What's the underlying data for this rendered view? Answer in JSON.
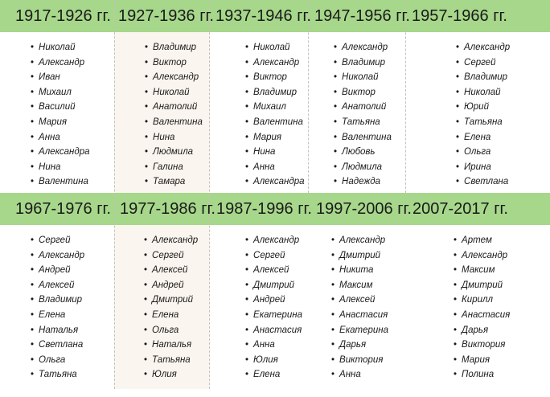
{
  "rows": [
    {
      "periods": [
        {
          "label": "1917-1926 гг.",
          "names": [
            "Николай",
            "Александр",
            "Иван",
            "Михаил",
            "Василий",
            "Мария",
            "Анна",
            "Александра",
            "Нина",
            "Валентина"
          ]
        },
        {
          "label": "1927-1936 гг.",
          "names": [
            "Владимир",
            "Виктор",
            "Александр",
            "Николай",
            "Анатолий",
            "Валентина",
            "Нина",
            "Людмила",
            "Галина",
            "Тамара"
          ]
        },
        {
          "label": "1937-1946 гг.",
          "names": [
            "Николай",
            "Александр",
            "Виктор",
            "Владимир",
            "Михаил",
            "Валентина",
            "Мария",
            "Нина",
            "Анна",
            "Александра"
          ]
        },
        {
          "label": "1947-1956 гг.",
          "names": [
            "Александр",
            "Владимир",
            "Николай",
            "Виктор",
            "Анатолий",
            "Татьяна",
            "Валентина",
            "Любовь",
            "Людмила",
            "Надежда"
          ]
        },
        {
          "label": "1957-1966 гг.",
          "names": [
            "Александр",
            "Сергей",
            "Владимир",
            "Николай",
            "Юрий",
            "Татьяна",
            "Елена",
            "Ольга",
            "Ирина",
            "Светлана"
          ]
        }
      ]
    },
    {
      "periods": [
        {
          "label": "1967-1976 гг.",
          "names": [
            "Сергей",
            "Александр",
            "Андрей",
            "Алексей",
            "Владимир",
            "Елена",
            "Наталья",
            "Светлана",
            "Ольга",
            "Татьяна"
          ]
        },
        {
          "label": "1977-1986 гг.",
          "names": [
            "Александр",
            "Сергей",
            "Алексей",
            "Андрей",
            "Дмитрий",
            "Елена",
            "Ольга",
            "Наталья",
            "Татьяна",
            "Юлия"
          ]
        },
        {
          "label": "1987-1996 гг.",
          "names": [
            "Александр",
            "Сергей",
            "Алексей",
            "Дмитрий",
            "Андрей",
            "Екатерина",
            "Анастасия",
            "Анна",
            "Юлия",
            "Елена"
          ]
        },
        {
          "label": "1997-2006 гг.",
          "names": [
            "Александр",
            "Дмитрий",
            "Никита",
            "Максим",
            "Алексей",
            "Анастасия",
            "Екатерина",
            "Дарья",
            "Виктория",
            "Анна"
          ]
        },
        {
          "label": "2007-2017 гг.",
          "names": [
            "Артем",
            "Александр",
            "Максим",
            "Дмитрий",
            "Кирилл",
            "Анастасия",
            "Дарья",
            "Виктория",
            "Мария",
            "Полина"
          ]
        }
      ]
    }
  ],
  "colors": {
    "header_band": "#a6d78a",
    "shaded_column": "#faf5ee",
    "text": "#1a1a1a"
  }
}
